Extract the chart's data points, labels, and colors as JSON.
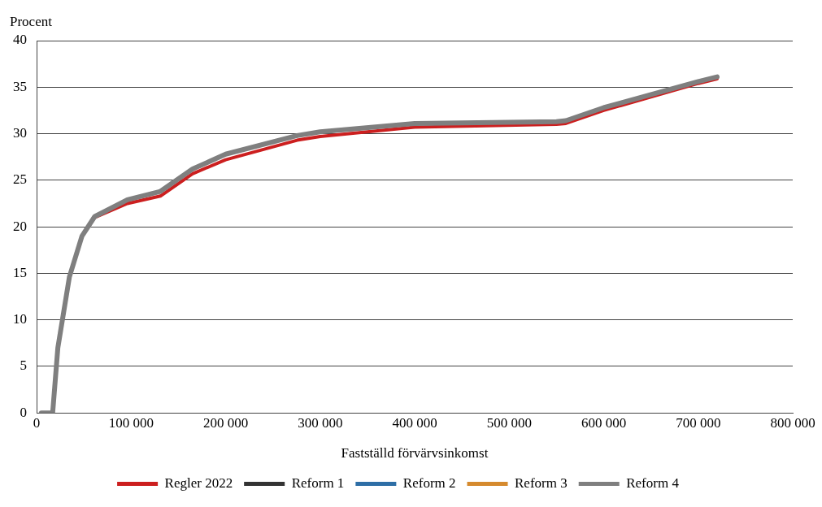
{
  "chart_data": {
    "type": "line",
    "xlabel": "Fastställd förvärvsinkomst",
    "ylabel": "Procent",
    "x": [
      5000,
      17000,
      22500,
      34700,
      48000,
      61500,
      96000,
      131000,
      165000,
      200000,
      275600,
      300000,
      400000,
      550000,
      560000,
      600000,
      700000,
      720000
    ],
    "series": [
      {
        "name": "Regler 2022",
        "color": "#cc1f1f",
        "values": [
          null,
          null,
          null,
          null,
          19,
          21,
          22.5,
          23.3,
          25.7,
          27.2,
          29.3,
          29.7,
          30.7,
          31,
          31.1,
          32.5,
          35.4,
          35.9
        ]
      },
      {
        "name": "Reform 1",
        "color": "#333333",
        "values": [
          null,
          null,
          null,
          null,
          null,
          null,
          null,
          null,
          null,
          null,
          null,
          null,
          null,
          null,
          null,
          null,
          null,
          null
        ]
      },
      {
        "name": "Reform 2",
        "color": "#2e6ea6",
        "values": [
          null,
          null,
          null,
          null,
          null,
          null,
          null,
          null,
          null,
          null,
          null,
          null,
          null,
          null,
          null,
          null,
          null,
          null
        ]
      },
      {
        "name": "Reform 3",
        "color": "#d58a2e",
        "values": [
          null,
          null,
          null,
          null,
          null,
          null,
          null,
          null,
          null,
          null,
          null,
          null,
          null,
          null,
          null,
          null,
          null,
          null
        ]
      },
      {
        "name": "Reform 4",
        "color": "#7f7f7f",
        "values": [
          0,
          0,
          7,
          14.6,
          19,
          21.1,
          22.9,
          23.8,
          26.2,
          27.8,
          29.8,
          30.2,
          31.1,
          31.3,
          31.4,
          32.8,
          35.6,
          36.1
        ]
      }
    ],
    "xlim": [
      0,
      800000
    ],
    "xticks": [
      0,
      {
        "value": 100000,
        "label": "100 000"
      },
      {
        "value": 200000,
        "label": "200 000"
      },
      {
        "value": 300000,
        "label": "300 000"
      },
      {
        "value": 400000,
        "label": "400 000"
      },
      {
        "value": 500000,
        "label": "500 000"
      },
      {
        "value": 600000,
        "label": "600 000"
      },
      {
        "value": 700000,
        "label": "700 000"
      },
      {
        "value": 800000,
        "label": "800 000"
      }
    ],
    "ylim": [
      0,
      40
    ],
    "yticks": [
      0,
      5,
      10,
      15,
      20,
      25,
      30,
      35,
      40
    ],
    "grid": "y",
    "legend": "bottom",
    "marker": "none",
    "line_style": "solid"
  }
}
